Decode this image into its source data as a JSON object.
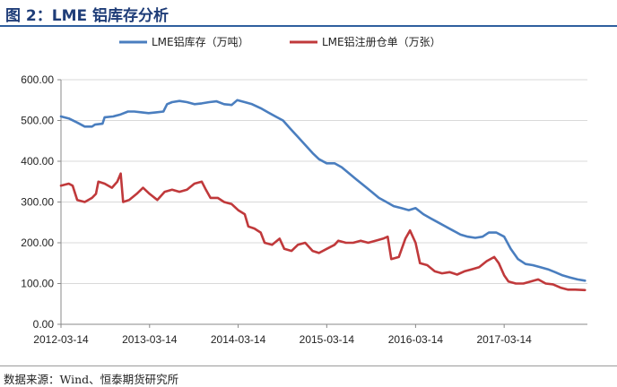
{
  "header": {
    "title": "图 2：LME 铝库存分析"
  },
  "footer": {
    "source": "数据来源：Wind、恒泰期货研究所"
  },
  "chart_data": {
    "type": "line",
    "title": "",
    "xlabel": "",
    "ylabel": "",
    "ylim": [
      0,
      600
    ],
    "yticks": [
      "0.00",
      "100.00",
      "200.00",
      "300.00",
      "400.00",
      "500.00",
      "600.00"
    ],
    "xticks": [
      "2012-03-14",
      "2013-03-14",
      "2014-03-14",
      "2015-03-14",
      "2016-03-14",
      "2017-03-14"
    ],
    "grid": "horizontal",
    "legend": "top-center",
    "series": [
      {
        "name": "LME铝库存（万吨）",
        "color": "#4a7ebf",
        "points": [
          [
            "2012-03-14",
            510
          ],
          [
            "2012-04-15",
            505
          ],
          [
            "2012-05-20",
            495
          ],
          [
            "2012-06-20",
            485
          ],
          [
            "2012-07-20",
            485
          ],
          [
            "2012-08-01",
            490
          ],
          [
            "2012-09-01",
            492
          ],
          [
            "2012-09-10",
            508
          ],
          [
            "2012-10-15",
            510
          ],
          [
            "2012-11-15",
            515
          ],
          [
            "2012-12-15",
            522
          ],
          [
            "2013-01-10",
            522
          ],
          [
            "2013-02-10",
            520
          ],
          [
            "2013-03-10",
            518
          ],
          [
            "2013-04-10",
            520
          ],
          [
            "2013-05-10",
            522
          ],
          [
            "2013-05-25",
            540
          ],
          [
            "2013-06-15",
            545
          ],
          [
            "2013-07-15",
            548
          ],
          [
            "2013-08-15",
            545
          ],
          [
            "2013-09-15",
            540
          ],
          [
            "2013-10-15",
            542
          ],
          [
            "2013-11-15",
            545
          ],
          [
            "2013-12-15",
            547
          ],
          [
            "2014-01-15",
            540
          ],
          [
            "2014-02-15",
            538
          ],
          [
            "2014-03-10",
            550
          ],
          [
            "2014-04-10",
            545
          ],
          [
            "2014-05-10",
            540
          ],
          [
            "2014-06-15",
            530
          ],
          [
            "2014-07-15",
            520
          ],
          [
            "2014-08-15",
            510
          ],
          [
            "2014-09-15",
            500
          ],
          [
            "2014-10-15",
            480
          ],
          [
            "2014-11-15",
            460
          ],
          [
            "2014-12-15",
            440
          ],
          [
            "2015-01-15",
            420
          ],
          [
            "2015-02-10",
            405
          ],
          [
            "2015-03-14",
            395
          ],
          [
            "2015-04-15",
            395
          ],
          [
            "2015-05-15",
            385
          ],
          [
            "2015-06-15",
            370
          ],
          [
            "2015-07-15",
            355
          ],
          [
            "2015-08-15",
            340
          ],
          [
            "2015-09-15",
            325
          ],
          [
            "2015-10-15",
            310
          ],
          [
            "2015-11-15",
            300
          ],
          [
            "2015-12-15",
            290
          ],
          [
            "2016-01-15",
            285
          ],
          [
            "2016-02-15",
            280
          ],
          [
            "2016-03-14",
            285
          ],
          [
            "2016-04-15",
            270
          ],
          [
            "2016-05-15",
            260
          ],
          [
            "2016-06-15",
            250
          ],
          [
            "2016-07-15",
            240
          ],
          [
            "2016-08-15",
            230
          ],
          [
            "2016-09-15",
            220
          ],
          [
            "2016-10-15",
            215
          ],
          [
            "2016-11-15",
            212
          ],
          [
            "2016-12-15",
            215
          ],
          [
            "2017-01-10",
            225
          ],
          [
            "2017-02-10",
            225
          ],
          [
            "2017-03-14",
            215
          ],
          [
            "2017-04-10",
            185
          ],
          [
            "2017-05-10",
            160
          ],
          [
            "2017-06-10",
            148
          ],
          [
            "2017-07-10",
            145
          ],
          [
            "2017-08-10",
            140
          ],
          [
            "2017-09-10",
            135
          ],
          [
            "2017-10-10",
            128
          ],
          [
            "2017-11-10",
            120
          ],
          [
            "2017-12-10",
            115
          ],
          [
            "2018-01-10",
            110
          ],
          [
            "2018-02-10",
            107
          ]
        ]
      },
      {
        "name": "LME铝注册仓单（万张）",
        "color": "#c0393b",
        "points": [
          [
            "2012-03-14",
            340
          ],
          [
            "2012-04-15",
            345
          ],
          [
            "2012-05-01",
            340
          ],
          [
            "2012-05-20",
            305
          ],
          [
            "2012-06-20",
            300
          ],
          [
            "2012-07-20",
            310
          ],
          [
            "2012-08-05",
            320
          ],
          [
            "2012-08-15",
            350
          ],
          [
            "2012-09-10",
            345
          ],
          [
            "2012-10-10",
            335
          ],
          [
            "2012-11-01",
            350
          ],
          [
            "2012-11-15",
            370
          ],
          [
            "2012-11-25",
            300
          ],
          [
            "2012-12-20",
            305
          ],
          [
            "2013-01-20",
            320
          ],
          [
            "2013-02-15",
            335
          ],
          [
            "2013-03-14",
            320
          ],
          [
            "2013-04-15",
            305
          ],
          [
            "2013-05-15",
            325
          ],
          [
            "2013-06-15",
            330
          ],
          [
            "2013-07-15",
            325
          ],
          [
            "2013-08-15",
            330
          ],
          [
            "2013-09-15",
            345
          ],
          [
            "2013-10-15",
            350
          ],
          [
            "2013-11-01",
            330
          ],
          [
            "2013-11-20",
            310
          ],
          [
            "2013-12-20",
            310
          ],
          [
            "2014-01-15",
            300
          ],
          [
            "2014-02-15",
            295
          ],
          [
            "2014-03-14",
            280
          ],
          [
            "2014-04-10",
            270
          ],
          [
            "2014-04-25",
            240
          ],
          [
            "2014-05-20",
            235
          ],
          [
            "2014-06-15",
            225
          ],
          [
            "2014-07-01",
            200
          ],
          [
            "2014-08-01",
            195
          ],
          [
            "2014-09-01",
            210
          ],
          [
            "2014-09-20",
            185
          ],
          [
            "2014-10-20",
            180
          ],
          [
            "2014-11-15",
            195
          ],
          [
            "2014-12-15",
            200
          ],
          [
            "2015-01-15",
            180
          ],
          [
            "2015-02-10",
            175
          ],
          [
            "2015-03-14",
            185
          ],
          [
            "2015-04-15",
            195
          ],
          [
            "2015-05-01",
            205
          ],
          [
            "2015-06-01",
            200
          ],
          [
            "2015-07-01",
            200
          ],
          [
            "2015-08-01",
            205
          ],
          [
            "2015-09-01",
            200
          ],
          [
            "2015-10-01",
            205
          ],
          [
            "2015-11-01",
            210
          ],
          [
            "2015-11-20",
            215
          ],
          [
            "2015-12-05",
            160
          ],
          [
            "2016-01-05",
            165
          ],
          [
            "2016-02-01",
            210
          ],
          [
            "2016-02-20",
            230
          ],
          [
            "2016-03-14",
            200
          ],
          [
            "2016-04-01",
            150
          ],
          [
            "2016-05-01",
            145
          ],
          [
            "2016-06-01",
            130
          ],
          [
            "2016-07-01",
            125
          ],
          [
            "2016-08-01",
            128
          ],
          [
            "2016-09-01",
            122
          ],
          [
            "2016-10-01",
            130
          ],
          [
            "2016-11-01",
            135
          ],
          [
            "2016-12-01",
            140
          ],
          [
            "2017-01-01",
            155
          ],
          [
            "2017-02-01",
            165
          ],
          [
            "2017-02-20",
            150
          ],
          [
            "2017-03-14",
            120
          ],
          [
            "2017-04-01",
            105
          ],
          [
            "2017-05-01",
            100
          ],
          [
            "2017-06-01",
            100
          ],
          [
            "2017-07-01",
            105
          ],
          [
            "2017-08-01",
            110
          ],
          [
            "2017-09-01",
            100
          ],
          [
            "2017-10-01",
            98
          ],
          [
            "2017-11-01",
            90
          ],
          [
            "2017-12-01",
            85
          ],
          [
            "2018-01-01",
            85
          ],
          [
            "2018-02-10",
            84
          ]
        ]
      }
    ]
  }
}
